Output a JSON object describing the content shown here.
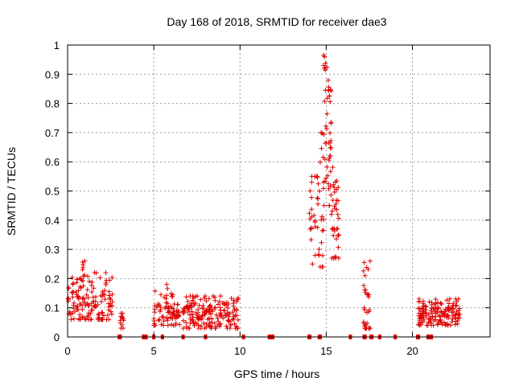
{
  "chart_data": {
    "type": "scatter",
    "title": "Day 168 of 2018, SRMTID for receiver dae3",
    "xlabel": "GPS time / hours",
    "ylabel": "SRMTID / TECUs",
    "xlim": [
      0,
      24.5
    ],
    "ylim": [
      0,
      1
    ],
    "x_ticks": [
      0,
      5,
      10,
      15,
      20
    ],
    "y_ticks": [
      0,
      0.1,
      0.2,
      0.3,
      0.4,
      0.5,
      0.6,
      0.7,
      0.8,
      0.9,
      1
    ],
    "x_tick_labels": [
      "0",
      "5",
      "10",
      "15",
      "20"
    ],
    "y_tick_labels": [
      "0",
      "0.1",
      "0.2",
      "0.3",
      "0.4",
      "0.5",
      "0.6",
      "0.7",
      "0.8",
      "0.9",
      "1"
    ],
    "grid": true,
    "marker": "+",
    "color": "#e00000",
    "series": [
      {
        "name": "SRMTID",
        "clusters": [
          {
            "x_start": 0.0,
            "x_end": 2.6,
            "y_min": 0.06,
            "y_max": 0.22,
            "y_mean": 0.12,
            "count": 140
          },
          {
            "x_start": 0.8,
            "x_end": 1.0,
            "y_min": 0.18,
            "y_max": 0.26,
            "y_mean": 0.22,
            "count": 8
          },
          {
            "x_start": 3.05,
            "x_end": 3.25,
            "y_min": 0.03,
            "y_max": 0.1,
            "y_mean": 0.06,
            "count": 12
          },
          {
            "x_start": 5.0,
            "x_end": 6.5,
            "y_min": 0.04,
            "y_max": 0.18,
            "y_mean": 0.08,
            "count": 80
          },
          {
            "x_start": 6.7,
            "x_end": 9.9,
            "y_min": 0.03,
            "y_max": 0.14,
            "y_mean": 0.08,
            "count": 180
          },
          {
            "x_start": 14.0,
            "x_end": 14.5,
            "y_min": 0.25,
            "y_max": 0.55,
            "y_mean": 0.43,
            "count": 22
          },
          {
            "x_start": 14.5,
            "x_end": 14.85,
            "y_min": 0.24,
            "y_max": 0.7,
            "y_mean": 0.45,
            "count": 24
          },
          {
            "x_start": 14.85,
            "x_end": 15.3,
            "y_min": 0.45,
            "y_max": 0.97,
            "y_mean": 0.68,
            "count": 45
          },
          {
            "x_start": 15.3,
            "x_end": 15.75,
            "y_min": 0.27,
            "y_max": 0.6,
            "y_mean": 0.44,
            "count": 35
          },
          {
            "x_start": 17.15,
            "x_end": 17.55,
            "y_min": 0.03,
            "y_max": 0.26,
            "y_mean": 0.1,
            "count": 30
          },
          {
            "x_start": 20.3,
            "x_end": 22.8,
            "y_min": 0.04,
            "y_max": 0.13,
            "y_mean": 0.08,
            "count": 150
          }
        ],
        "points": [
          {
            "x": 14.85,
            "y": 0.965
          },
          {
            "x": 14.9,
            "y": 0.96
          },
          {
            "x": 14.85,
            "y": 0.93
          },
          {
            "x": 14.9,
            "y": 0.92
          },
          {
            "x": 14.95,
            "y": 0.845
          },
          {
            "x": 17.2,
            "y": 0.255
          },
          {
            "x": 17.25,
            "y": 0.21
          },
          {
            "x": 1.0,
            "y": 0.26
          },
          {
            "x": 5.75,
            "y": 0.18
          },
          {
            "x": 14.65,
            "y": 0.24
          },
          {
            "x": 14.2,
            "y": 0.25
          },
          {
            "x": 15.55,
            "y": 0.27
          }
        ]
      },
      {
        "name": "zero",
        "x": [
          3.0,
          3.05,
          4.4,
          4.5,
          4.55,
          5.0,
          5.5,
          6.7,
          8.0,
          10.2,
          11.7,
          11.8,
          11.9,
          14.0,
          14.05,
          14.6,
          14.65,
          16.4,
          17.2,
          17.25,
          17.6,
          17.65,
          18.1,
          19.0,
          20.3,
          20.35,
          20.9,
          21.0,
          21.05,
          21.1
        ]
      }
    ]
  }
}
